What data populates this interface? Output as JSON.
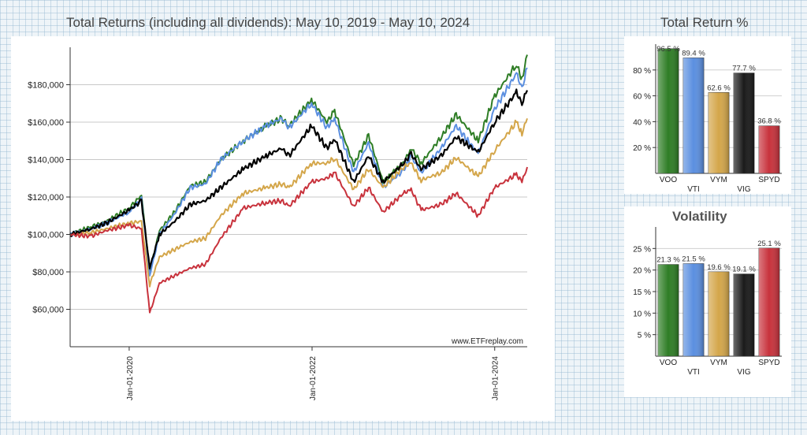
{
  "main": {
    "title": "Total Returns (including all dividends): May 10, 2019 - May 10, 2024",
    "watermark": "www.ETFreplay.com"
  },
  "returns": {
    "title": "Total Return %"
  },
  "volatility": {
    "title": "Volatility"
  },
  "chart_data": [
    {
      "type": "line",
      "title": "Total Returns (including all dividends): May 10, 2019 - May 10, 2024",
      "x_range": [
        "2019-05-10",
        "2024-05-10"
      ],
      "ylim": [
        40000,
        200000
      ],
      "y_ticks": [
        60000,
        80000,
        100000,
        120000,
        140000,
        160000,
        180000
      ],
      "y_tick_labels": [
        "$60,000",
        "$80,000",
        "$100,000",
        "$120,000",
        "$140,000",
        "$160,000",
        "$180,000"
      ],
      "x_tick_labels": [
        "Jan-01-2020",
        "Jan-01-2022",
        "Jan-01-2024"
      ],
      "x_ticks": [
        "2020-01-01",
        "2022-01-01",
        "2024-01-01"
      ],
      "grid": true,
      "series": [
        {
          "name": "VOO",
          "color": "#2e7d25",
          "points": [
            [
              "2019-05-10",
              100000
            ],
            [
              "2019-08-01",
              104000
            ],
            [
              "2019-10-01",
              107000
            ],
            [
              "2020-01-01",
              114000
            ],
            [
              "2020-02-19",
              121000
            ],
            [
              "2020-03-23",
              80000
            ],
            [
              "2020-05-01",
              102000
            ],
            [
              "2020-07-01",
              112000
            ],
            [
              "2020-09-01",
              126000
            ],
            [
              "2020-11-01",
              128000
            ],
            [
              "2021-01-01",
              140000
            ],
            [
              "2021-04-01",
              150000
            ],
            [
              "2021-07-01",
              158000
            ],
            [
              "2021-09-01",
              162000
            ],
            [
              "2021-10-01",
              158000
            ],
            [
              "2021-12-30",
              172000
            ],
            [
              "2022-03-01",
              160000
            ],
            [
              "2022-04-01",
              166000
            ],
            [
              "2022-06-16",
              137000
            ],
            [
              "2022-08-15",
              153000
            ],
            [
              "2022-10-12",
              128000
            ],
            [
              "2023-01-01",
              138000
            ],
            [
              "2023-02-01",
              146000
            ],
            [
              "2023-03-13",
              138000
            ],
            [
              "2023-06-01",
              152000
            ],
            [
              "2023-07-31",
              164000
            ],
            [
              "2023-10-27",
              150000
            ],
            [
              "2024-01-01",
              174000
            ],
            [
              "2024-03-28",
              191000
            ],
            [
              "2024-04-19",
              183000
            ],
            [
              "2024-05-10",
              196000
            ]
          ]
        },
        {
          "name": "VTI",
          "color": "#5b8fe0",
          "points": [
            [
              "2019-05-10",
              100000
            ],
            [
              "2019-08-01",
              103000
            ],
            [
              "2019-10-01",
              106000
            ],
            [
              "2020-01-01",
              112000
            ],
            [
              "2020-02-19",
              119000
            ],
            [
              "2020-03-23",
              78000
            ],
            [
              "2020-05-01",
              100000
            ],
            [
              "2020-07-01",
              111000
            ],
            [
              "2020-09-01",
              125000
            ],
            [
              "2020-11-01",
              127000
            ],
            [
              "2021-01-01",
              140000
            ],
            [
              "2021-04-01",
              150000
            ],
            [
              "2021-07-01",
              158000
            ],
            [
              "2021-09-01",
              162000
            ],
            [
              "2021-10-01",
              157000
            ],
            [
              "2021-12-30",
              170000
            ],
            [
              "2022-03-01",
              157000
            ],
            [
              "2022-04-01",
              162000
            ],
            [
              "2022-06-16",
              133000
            ],
            [
              "2022-08-15",
              149000
            ],
            [
              "2022-10-12",
              125000
            ],
            [
              "2023-01-01",
              134000
            ],
            [
              "2023-02-01",
              142000
            ],
            [
              "2023-03-13",
              133000
            ],
            [
              "2023-06-01",
              146000
            ],
            [
              "2023-07-31",
              158000
            ],
            [
              "2023-10-27",
              143000
            ],
            [
              "2024-01-01",
              167000
            ],
            [
              "2024-03-28",
              186000
            ],
            [
              "2024-04-19",
              178000
            ],
            [
              "2024-05-10",
              189000
            ]
          ]
        },
        {
          "name": "VYM",
          "color": "#d4a64a",
          "points": [
            [
              "2019-05-10",
              100000
            ],
            [
              "2019-08-01",
              101000
            ],
            [
              "2019-10-01",
              103000
            ],
            [
              "2020-01-01",
              106000
            ],
            [
              "2020-02-19",
              107000
            ],
            [
              "2020-03-23",
              73000
            ],
            [
              "2020-05-01",
              88000
            ],
            [
              "2020-07-01",
              92000
            ],
            [
              "2020-09-01",
              96000
            ],
            [
              "2020-11-01",
              98000
            ],
            [
              "2021-01-01",
              110000
            ],
            [
              "2021-04-01",
              122000
            ],
            [
              "2021-07-01",
              125000
            ],
            [
              "2021-09-01",
              127000
            ],
            [
              "2021-10-01",
              125000
            ],
            [
              "2021-12-30",
              138000
            ],
            [
              "2022-03-01",
              138000
            ],
            [
              "2022-04-01",
              141000
            ],
            [
              "2022-06-16",
              124000
            ],
            [
              "2022-08-15",
              135000
            ],
            [
              "2022-10-12",
              125000
            ],
            [
              "2023-01-01",
              136000
            ],
            [
              "2023-02-01",
              138000
            ],
            [
              "2023-03-13",
              129000
            ],
            [
              "2023-06-01",
              133000
            ],
            [
              "2023-07-31",
              141000
            ],
            [
              "2023-10-27",
              131000
            ],
            [
              "2024-01-01",
              145000
            ],
            [
              "2024-03-28",
              160000
            ],
            [
              "2024-04-19",
              154000
            ],
            [
              "2024-05-10",
              162000
            ]
          ]
        },
        {
          "name": "VIG",
          "color": "#000000",
          "points": [
            [
              "2019-05-10",
              100000
            ],
            [
              "2019-08-01",
              103000
            ],
            [
              "2019-10-01",
              106000
            ],
            [
              "2020-01-01",
              113000
            ],
            [
              "2020-02-19",
              118000
            ],
            [
              "2020-03-23",
              82000
            ],
            [
              "2020-05-01",
              100000
            ],
            [
              "2020-07-01",
              107000
            ],
            [
              "2020-09-01",
              116000
            ],
            [
              "2020-11-01",
              118000
            ],
            [
              "2021-01-01",
              125000
            ],
            [
              "2021-04-01",
              135000
            ],
            [
              "2021-07-01",
              142000
            ],
            [
              "2021-09-01",
              146000
            ],
            [
              "2021-10-01",
              142000
            ],
            [
              "2021-12-30",
              158000
            ],
            [
              "2022-03-01",
              146000
            ],
            [
              "2022-04-01",
              151000
            ],
            [
              "2022-06-16",
              128000
            ],
            [
              "2022-08-15",
              142000
            ],
            [
              "2022-10-12",
              128000
            ],
            [
              "2023-01-01",
              138000
            ],
            [
              "2023-02-01",
              143000
            ],
            [
              "2023-03-13",
              135000
            ],
            [
              "2023-06-01",
              142000
            ],
            [
              "2023-07-31",
              152000
            ],
            [
              "2023-10-27",
              144000
            ],
            [
              "2024-01-01",
              160000
            ],
            [
              "2024-03-28",
              176000
            ],
            [
              "2024-04-19",
              170000
            ],
            [
              "2024-05-10",
              177000
            ]
          ]
        },
        {
          "name": "SPYD",
          "color": "#c8323c",
          "points": [
            [
              "2019-05-10",
              100000
            ],
            [
              "2019-08-01",
              99000
            ],
            [
              "2019-10-01",
              102000
            ],
            [
              "2020-01-01",
              105000
            ],
            [
              "2020-02-19",
              103000
            ],
            [
              "2020-03-23",
              58000
            ],
            [
              "2020-05-01",
              74000
            ],
            [
              "2020-07-01",
              78000
            ],
            [
              "2020-09-01",
              82000
            ],
            [
              "2020-11-01",
              84000
            ],
            [
              "2021-01-01",
              98000
            ],
            [
              "2021-04-01",
              114000
            ],
            [
              "2021-07-01",
              117000
            ],
            [
              "2021-09-01",
              118000
            ],
            [
              "2021-10-01",
              115000
            ],
            [
              "2021-12-30",
              128000
            ],
            [
              "2022-03-01",
              130000
            ],
            [
              "2022-04-01",
              133000
            ],
            [
              "2022-06-16",
              115000
            ],
            [
              "2022-08-15",
              125000
            ],
            [
              "2022-10-12",
              112000
            ],
            [
              "2023-01-01",
              122000
            ],
            [
              "2023-02-01",
              124000
            ],
            [
              "2023-03-13",
              113000
            ],
            [
              "2023-06-01",
              116000
            ],
            [
              "2023-07-31",
              122000
            ],
            [
              "2023-10-27",
              110000
            ],
            [
              "2024-01-01",
              125000
            ],
            [
              "2024-03-28",
              132000
            ],
            [
              "2024-04-19",
              128000
            ],
            [
              "2024-05-10",
              136000
            ]
          ]
        }
      ]
    },
    {
      "type": "bar",
      "title": "Total Return %",
      "categories": [
        "VOO",
        "VTI",
        "VYM",
        "VIG",
        "SPYD"
      ],
      "values": [
        96.5,
        89.4,
        62.6,
        77.7,
        36.8
      ],
      "value_labels": [
        "96.5 %",
        "89.4 %",
        "62.6 %",
        "77.7 %",
        "36.8 %"
      ],
      "colors": [
        "#2e7d25",
        "#5b8fe0",
        "#d4a64a",
        "#1a1a1a",
        "#c8323c"
      ],
      "ylim": [
        0,
        100
      ],
      "y_ticks": [
        20,
        40,
        60,
        80
      ],
      "y_tick_labels": [
        "20 %",
        "40 %",
        "60 %",
        "80 %"
      ]
    },
    {
      "type": "bar",
      "title": "Volatility",
      "categories": [
        "VOO",
        "VTI",
        "VYM",
        "VIG",
        "SPYD"
      ],
      "values": [
        21.3,
        21.5,
        19.6,
        19.1,
        25.1
      ],
      "value_labels": [
        "21.3 %",
        "21.5 %",
        "19.6 %",
        "19.1 %",
        "25.1 %"
      ],
      "colors": [
        "#2e7d25",
        "#5b8fe0",
        "#d4a64a",
        "#1a1a1a",
        "#c8323c"
      ],
      "ylim": [
        0,
        30
      ],
      "y_ticks": [
        5,
        10,
        15,
        20,
        25
      ],
      "y_tick_labels": [
        "5 %",
        "10 %",
        "15 %",
        "20 %",
        "25 %"
      ]
    }
  ]
}
